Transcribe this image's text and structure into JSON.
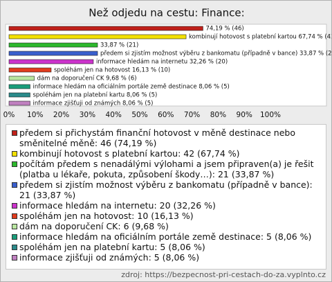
{
  "chart_data": {
    "type": "bar",
    "orientation": "horizontal",
    "title": "Než odjedu na cestu: Finance:",
    "categories": [
      "předem si přichystám finanční hotovost v měně destinace nebo směnitelné měně: 46 (74,19 %)",
      "kombinují hotovost s platební kartou: 42 (67,74 %)",
      "počítám předem s nenadálými výlohami a jsem připraven(a) je řešit (platba u lékaře, pokuta, způsobení škody…): 21 (33,87 %)",
      "předem si zjistím možnost výběru z bankomatu (případně v bance): 21 (33,87 %)",
      "informace hledám na internetu: 20 (32,26 %)",
      "spoléhám jen na hotovost: 10 (16,13 %)",
      "dám na doporučení CK: 6 (9,68 %)",
      "informace hledám na oficiálním portále země destinace: 5 (8,06 %)",
      "spoléhám jen na platební kartu: 5 (8,06 %)",
      "informace zjišťuji od známých: 5 (8,06 %)"
    ],
    "values": [
      74.19,
      67.74,
      33.87,
      33.87,
      32.26,
      16.13,
      9.68,
      8.06,
      8.06,
      8.06
    ],
    "value_labels": [
      "74,19 % (46)",
      "kombinují hotovost s platební kartou 67,74 % (42)",
      "33,87 % (21)",
      "předem si zjistím možnost výběru z bankomatu (případně v bance) 33,87 % (21)",
      "informace hledám na internetu 32,26 % (20)",
      "spoléhám jen na hotovost 16,13 % (10)",
      "dám na doporučení CK 9,68 % (6)",
      "informace hledám na oficiálním portále země destinace 8,06 % (5)",
      "spoléhám jen na platební kartu 8,06 % (5)",
      "informace zjišťuji od známých 8,06 % (5)"
    ],
    "colors": [
      "#c0201a",
      "#f2e000",
      "#2db82d",
      "#3a5fcd",
      "#cc33cc",
      "#e03c1e",
      "#b8e6a0",
      "#1a9d7a",
      "#2a8a8a",
      "#c080c0"
    ],
    "xlim": [
      0,
      100
    ],
    "xticks": [
      {
        "value": 0,
        "label": "0%"
      },
      {
        "value": 10,
        "label": "10%"
      },
      {
        "value": 20,
        "label": "20%"
      },
      {
        "value": 30,
        "label": "30%"
      },
      {
        "value": 40,
        "label": "40%"
      },
      {
        "value": 50,
        "label": "50%"
      },
      {
        "value": 60,
        "label": "60%"
      },
      {
        "value": 70,
        "label": "70%"
      },
      {
        "value": 80,
        "label": "80%"
      },
      {
        "value": 90,
        "label": "90%"
      },
      {
        "value": 100,
        "label": "100%"
      }
    ],
    "grid": false,
    "source": "zdroj: https://bezpecnost-pri-cestach-do-za.vyplnto.cz"
  }
}
